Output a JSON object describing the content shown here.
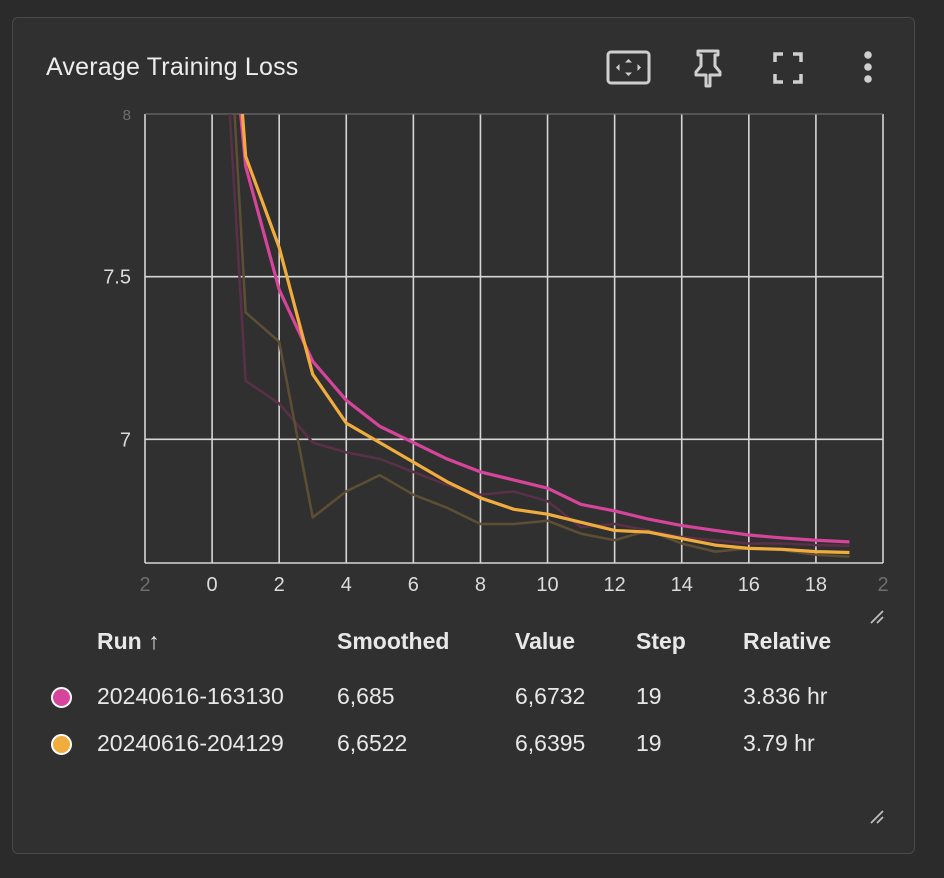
{
  "card": {
    "title": "Average Training Loss",
    "toolbar": [
      {
        "name": "fit-domain-icon"
      },
      {
        "name": "pin-icon"
      },
      {
        "name": "fullscreen-icon"
      },
      {
        "name": "more-vert-icon"
      }
    ]
  },
  "chart_data": {
    "type": "line",
    "title": "",
    "xlabel": "",
    "ylabel": "",
    "xlim": [
      -2,
      20
    ],
    "ylim": [
      6.62,
      8
    ],
    "x_ticks": [
      "2",
      "0",
      "2",
      "4",
      "6",
      "8",
      "10",
      "12",
      "14",
      "16",
      "18",
      "2"
    ],
    "y_ticks": [
      "8",
      "7.5",
      "7"
    ],
    "grid": true,
    "legend": "none",
    "series": [
      {
        "name": "20240616-163130",
        "color": "#d6449c",
        "raw_color": "#5a3048",
        "x": [
          0,
          1,
          2,
          3,
          4,
          5,
          6,
          7,
          8,
          9,
          10,
          11,
          12,
          13,
          14,
          15,
          16,
          17,
          18,
          19
        ],
        "smoothed": [
          8.92,
          7.84,
          7.46,
          7.24,
          7.12,
          7.04,
          6.99,
          6.94,
          6.9,
          6.875,
          6.85,
          6.8,
          6.78,
          6.755,
          6.735,
          6.72,
          6.706,
          6.697,
          6.69,
          6.685
        ],
        "raw": [
          8.92,
          7.18,
          7.11,
          6.99,
          6.96,
          6.94,
          6.9,
          6.86,
          6.83,
          6.84,
          6.81,
          6.73,
          6.74,
          6.72,
          6.7,
          6.69,
          6.68,
          6.68,
          6.675,
          6.6732
        ]
      },
      {
        "name": "20240616-204129",
        "color": "#f0ad3e",
        "raw_color": "#5e4f34",
        "x": [
          0,
          1,
          2,
          3,
          4,
          5,
          6,
          7,
          8,
          9,
          10,
          11,
          12,
          13,
          14,
          15,
          16,
          17,
          18,
          19
        ],
        "smoothed": [
          9.24,
          7.87,
          7.59,
          7.2,
          7.05,
          6.99,
          6.93,
          6.87,
          6.82,
          6.785,
          6.77,
          6.745,
          6.72,
          6.715,
          6.695,
          6.675,
          6.665,
          6.662,
          6.655,
          6.6522
        ],
        "raw": [
          9.24,
          7.39,
          7.3,
          6.76,
          6.84,
          6.89,
          6.83,
          6.79,
          6.74,
          6.74,
          6.75,
          6.71,
          6.69,
          6.72,
          6.68,
          6.655,
          6.665,
          6.66,
          6.645,
          6.6395
        ]
      }
    ]
  },
  "legend": {
    "headers": {
      "run": "Run ↑",
      "smoothed": "Smoothed",
      "value": "Value",
      "step": "Step",
      "relative": "Relative"
    },
    "rows": [
      {
        "color": "#d6449c",
        "run": "20240616-163130",
        "smoothed": "6,685",
        "value": "6,6732",
        "step": "19",
        "relative": "3.836 hr"
      },
      {
        "color": "#f0ad3e",
        "run": "20240616-204129",
        "smoothed": "6,6522",
        "value": "6,6395",
        "step": "19",
        "relative": "3.79 hr"
      }
    ]
  }
}
